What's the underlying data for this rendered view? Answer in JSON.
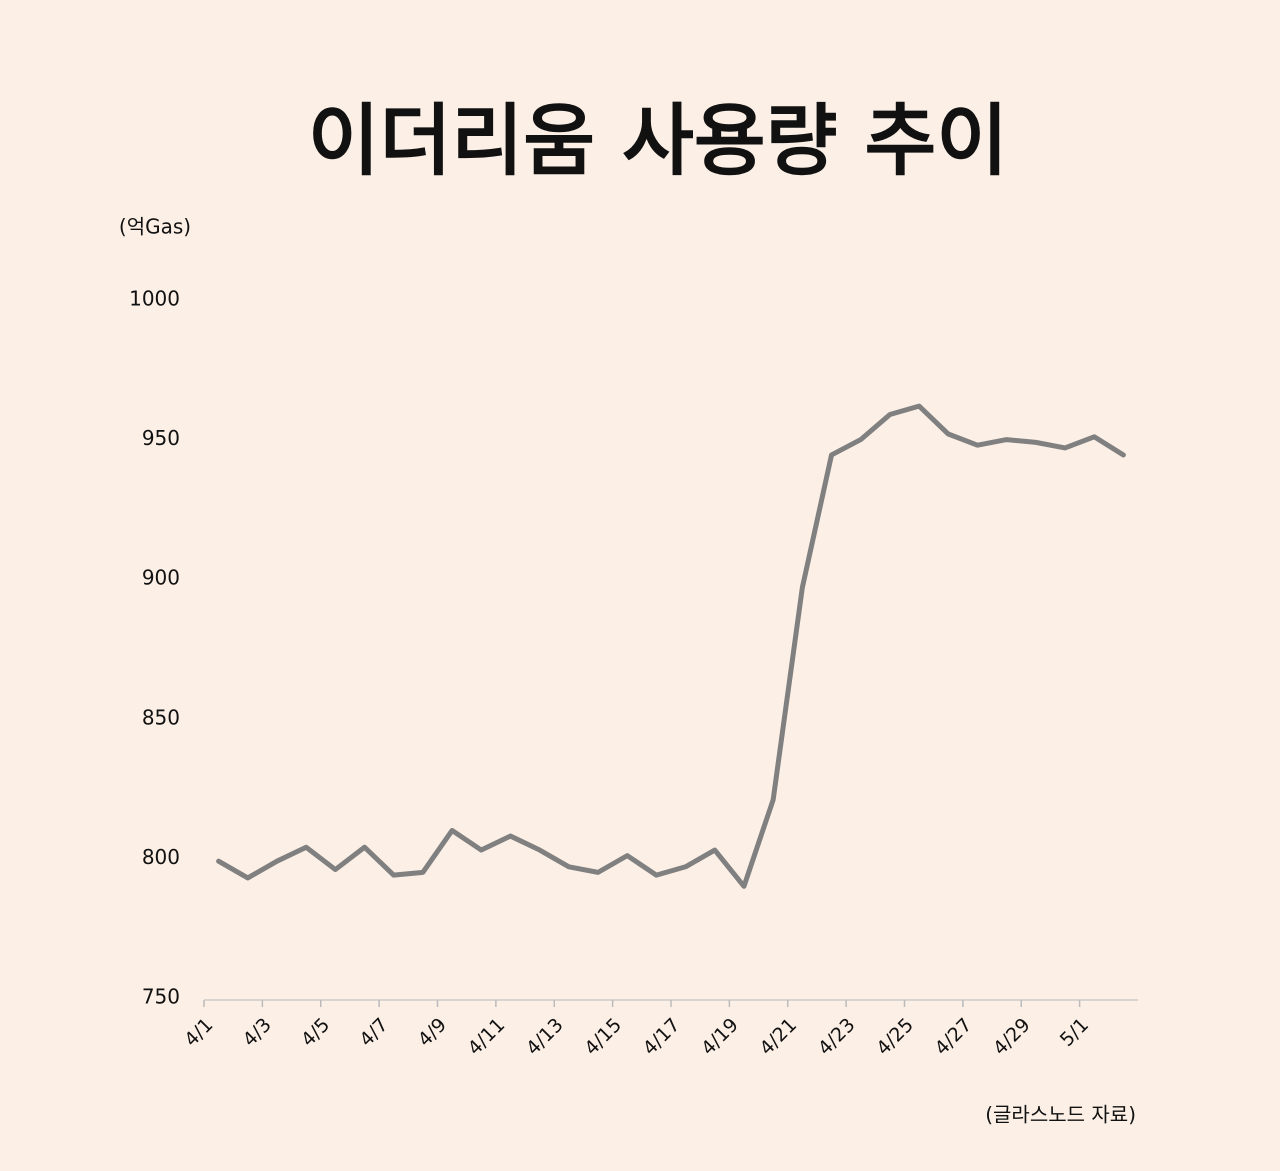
{
  "chart_data": {
    "type": "line",
    "title": "이더리움 사용량 추이",
    "y_label": "(억Gas)",
    "source": "(글라스노드 자료)",
    "categories": [
      "4/1",
      null,
      "4/3",
      null,
      "4/5",
      null,
      "4/7",
      null,
      "4/9",
      null,
      "4/11",
      null,
      "4/13",
      null,
      "4/15",
      null,
      "4/17",
      null,
      "4/19",
      null,
      "4/21",
      null,
      "4/23",
      null,
      "4/25",
      null,
      "4/27",
      null,
      "4/29",
      null,
      "5/1",
      null
    ],
    "values": [
      799,
      793,
      799,
      804,
      796,
      804,
      794,
      795,
      810,
      803,
      808,
      803,
      797,
      795,
      801,
      794,
      797,
      803,
      790,
      821,
      897,
      944.5,
      950,
      959,
      962,
      952,
      948,
      950,
      949,
      947,
      951,
      944.5
    ],
    "color": "#808080",
    "ylim": [
      750,
      1000
    ],
    "yticks": [
      750,
      800,
      850,
      900,
      950,
      1000
    ]
  }
}
